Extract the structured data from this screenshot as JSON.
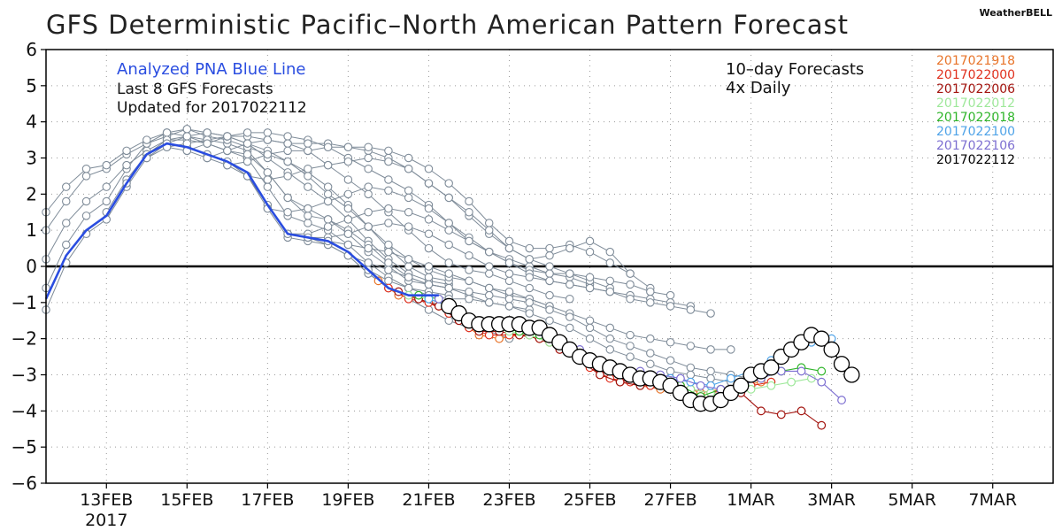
{
  "brand": "WeatherBELL",
  "chart_data": {
    "type": "line",
    "title": "GFS Deterministic Pacific–North American Pattern Forecast",
    "xlabel": "",
    "ylabel": "",
    "ylim": [
      -6,
      6
    ],
    "xlim": [
      "2017-02-11T12",
      "2017-03-08T12"
    ],
    "grid": true,
    "x_tick_labels": [
      "13FEB",
      "15FEB",
      "17FEB",
      "19FEB",
      "21FEB",
      "23FEB",
      "25FEB",
      "27FEB",
      "1MAR",
      "3MAR",
      "5MAR",
      "7MAR"
    ],
    "x_tick_dates": [
      "2017-02-13",
      "2017-02-15",
      "2017-02-17",
      "2017-02-19",
      "2017-02-21",
      "2017-02-23",
      "2017-02-25",
      "2017-02-27",
      "2017-03-01",
      "2017-03-03",
      "2017-03-05",
      "2017-03-07"
    ],
    "year_label": "2017",
    "y_ticks": [
      6,
      5,
      4,
      3,
      2,
      1,
      0,
      -1,
      -2,
      -3,
      -4,
      -5,
      -6
    ],
    "y_tick_labels": [
      "6",
      "5",
      "4",
      "3",
      "2",
      "1",
      "0",
      "−1",
      "−2",
      "−3",
      "−4",
      "−5",
      "−6"
    ],
    "annotations_left": {
      "blue_line": "Analyzed PNA Blue Line",
      "last8": "Last 8 GFS Forecasts",
      "updated": "Updated for 2017022112"
    },
    "annotations_right": {
      "forecasts": "10–day Forecasts",
      "daily": "4x Daily"
    },
    "analyzed_color": "#2a4de0",
    "old_forecast_color": "#7f8c99",
    "analyzed": {
      "name": "Analyzed PNA",
      "x": [
        "2017-02-11T12",
        "2017-02-12T00",
        "2017-02-12T12",
        "2017-02-13T00",
        "2017-02-13T12",
        "2017-02-14T00",
        "2017-02-14T12",
        "2017-02-15T00",
        "2017-02-15T12",
        "2017-02-16T00",
        "2017-02-16T12",
        "2017-02-17T00",
        "2017-02-17T12",
        "2017-02-18T00",
        "2017-02-18T12",
        "2017-02-19T00",
        "2017-02-19T12",
        "2017-02-20T00",
        "2017-02-20T12",
        "2017-02-21T00",
        "2017-02-21T06"
      ],
      "values": [
        -0.9,
        0.3,
        1.0,
        1.4,
        2.3,
        3.1,
        3.4,
        3.3,
        3.1,
        2.9,
        2.6,
        1.7,
        0.9,
        0.8,
        0.7,
        0.4,
        -0.1,
        -0.6,
        -0.8,
        -0.8,
        -0.8
      ]
    },
    "series": [
      {
        "name": "2017021918",
        "color": "#e8742a",
        "x": [
          "2017-02-19T18",
          "2017-02-20T06",
          "2017-02-20T18",
          "2017-02-21T06",
          "2017-02-21T18",
          "2017-02-22T06",
          "2017-02-22T18",
          "2017-02-23T06",
          "2017-02-23T18",
          "2017-02-24T06",
          "2017-02-24T18",
          "2017-02-25T06",
          "2017-02-25T18",
          "2017-02-26T06",
          "2017-02-26T18",
          "2017-02-27T06",
          "2017-02-27T18",
          "2017-02-28T06",
          "2017-02-28T18",
          "2017-03-01T06"
        ],
        "values": [
          -0.4,
          -0.8,
          -0.9,
          -1.1,
          -1.5,
          -1.9,
          -2.0,
          -1.9,
          -2.0,
          -2.2,
          -2.5,
          -3.0,
          -3.2,
          -3.3,
          -3.4,
          -3.3,
          -3.5,
          -3.4,
          -3.3,
          -3.2
        ]
      },
      {
        "name": "2017022000",
        "color": "#e0301e",
        "x": [
          "2017-02-20T00",
          "2017-02-20T12",
          "2017-02-21T00",
          "2017-02-21T12",
          "2017-02-22T00",
          "2017-02-22T12",
          "2017-02-23T00",
          "2017-02-23T12",
          "2017-02-24T00",
          "2017-02-24T12",
          "2017-02-25T00",
          "2017-02-25T12",
          "2017-02-26T00",
          "2017-02-26T12",
          "2017-02-27T00",
          "2017-02-27T12",
          "2017-02-28T00",
          "2017-02-28T12",
          "2017-03-01T00",
          "2017-03-01T12"
        ],
        "values": [
          -0.6,
          -0.9,
          -1.0,
          -1.3,
          -1.7,
          -1.9,
          -1.9,
          -1.9,
          -2.1,
          -2.4,
          -2.8,
          -3.1,
          -3.2,
          -3.3,
          -3.4,
          -3.4,
          -3.5,
          -3.4,
          -3.3,
          -3.2
        ]
      },
      {
        "name": "2017022006",
        "color": "#a3140f",
        "x": [
          "2017-02-20T06",
          "2017-02-20T18",
          "2017-02-21T06",
          "2017-02-21T18",
          "2017-02-22T06",
          "2017-02-22T18",
          "2017-02-23T06",
          "2017-02-23T18",
          "2017-02-24T06",
          "2017-02-24T18",
          "2017-02-25T06",
          "2017-02-25T18",
          "2017-02-26T06",
          "2017-02-26T18",
          "2017-02-27T06",
          "2017-02-27T18",
          "2017-02-28T06",
          "2017-02-28T18",
          "2017-03-01T06",
          "2017-03-01T18",
          "2017-03-02T06",
          "2017-03-02T18"
        ],
        "values": [
          -0.7,
          -0.9,
          -1.1,
          -1.5,
          -1.8,
          -1.8,
          -1.9,
          -2.0,
          -2.3,
          -2.6,
          -3.0,
          -3.2,
          -3.3,
          -3.3,
          -3.4,
          -3.6,
          -3.7,
          -3.5,
          -4.0,
          -4.1,
          -4.0,
          -4.4
        ]
      },
      {
        "name": "2017022012",
        "color": "#9ee89a",
        "x": [
          "2017-02-20T12",
          "2017-02-21T00",
          "2017-02-21T12",
          "2017-02-22T00",
          "2017-02-22T12",
          "2017-02-23T00",
          "2017-02-23T12",
          "2017-02-24T00",
          "2017-02-24T12",
          "2017-02-25T00",
          "2017-02-25T12",
          "2017-02-26T00",
          "2017-02-26T12",
          "2017-02-27T00",
          "2017-02-27T12",
          "2017-02-28T00",
          "2017-02-28T12",
          "2017-03-01T00",
          "2017-03-01T12",
          "2017-03-02T00",
          "2017-03-02T12"
        ],
        "values": [
          -0.8,
          -0.9,
          -1.1,
          -1.5,
          -1.7,
          -1.8,
          -1.9,
          -2.1,
          -2.4,
          -2.7,
          -2.9,
          -3.0,
          -3.1,
          -3.2,
          -3.4,
          -3.5,
          -3.6,
          -3.4,
          -3.3,
          -3.2,
          -3.1
        ]
      },
      {
        "name": "2017022018",
        "color": "#2fb52a",
        "x": [
          "2017-02-20T18",
          "2017-02-21T06",
          "2017-02-21T18",
          "2017-02-22T06",
          "2017-02-22T18",
          "2017-02-23T06",
          "2017-02-23T18",
          "2017-02-24T06",
          "2017-02-24T18",
          "2017-02-25T06",
          "2017-02-25T18",
          "2017-02-26T06",
          "2017-02-26T18",
          "2017-02-27T06",
          "2017-02-27T18",
          "2017-02-28T06",
          "2017-02-28T18",
          "2017-03-01T06",
          "2017-03-01T18",
          "2017-03-02T06",
          "2017-03-02T18"
        ],
        "values": [
          -0.8,
          -0.9,
          -1.3,
          -1.6,
          -1.7,
          -1.8,
          -1.9,
          -2.1,
          -2.5,
          -2.8,
          -3.0,
          -3.1,
          -3.2,
          -3.3,
          -3.6,
          -3.4,
          -3.3,
          -3.1,
          -2.9,
          -2.8,
          -2.9
        ]
      },
      {
        "name": "2017022100",
        "color": "#4fa3e8",
        "x": [
          "2017-02-21T00",
          "2017-02-21T12",
          "2017-02-22T00",
          "2017-02-22T12",
          "2017-02-23T00",
          "2017-02-23T12",
          "2017-02-24T00",
          "2017-02-24T12",
          "2017-02-25T00",
          "2017-02-25T12",
          "2017-02-26T00",
          "2017-02-26T12",
          "2017-02-27T00",
          "2017-02-27T12",
          "2017-02-28T00",
          "2017-02-28T12",
          "2017-03-01T00",
          "2017-03-01T12",
          "2017-03-02T00",
          "2017-03-02T12",
          "2017-03-03T00"
        ],
        "values": [
          -0.9,
          -1.1,
          -1.5,
          -1.7,
          -1.7,
          -1.8,
          -2.0,
          -2.3,
          -2.6,
          -2.8,
          -2.9,
          -3.0,
          -3.1,
          -3.2,
          -3.3,
          -3.1,
          -2.9,
          -2.6,
          -2.3,
          -2.1,
          -2.0
        ]
      },
      {
        "name": "2017022106",
        "color": "#7d6fd1",
        "x": [
          "2017-02-21T06",
          "2017-02-21T18",
          "2017-02-22T06",
          "2017-02-22T18",
          "2017-02-23T06",
          "2017-02-23T18",
          "2017-02-24T06",
          "2017-02-24T18",
          "2017-02-25T06",
          "2017-02-25T18",
          "2017-02-26T06",
          "2017-02-26T18",
          "2017-02-27T06",
          "2017-02-27T18",
          "2017-02-28T06",
          "2017-02-28T18",
          "2017-03-01T06",
          "2017-03-01T18",
          "2017-03-02T06",
          "2017-03-02T18",
          "2017-03-03T06"
        ],
        "values": [
          -0.9,
          -1.2,
          -1.6,
          -1.7,
          -1.7,
          -1.8,
          -2.0,
          -2.3,
          -2.6,
          -2.8,
          -2.9,
          -3.0,
          -3.1,
          -3.3,
          -3.4,
          -3.3,
          -3.1,
          -2.9,
          -2.9,
          -3.2,
          -3.7
        ]
      },
      {
        "name": "2017022112",
        "color": "#000000",
        "x": [
          "2017-02-21T12",
          "2017-02-21T18",
          "2017-02-22T00",
          "2017-02-22T06",
          "2017-02-22T12",
          "2017-02-22T18",
          "2017-02-23T00",
          "2017-02-23T06",
          "2017-02-23T12",
          "2017-02-23T18",
          "2017-02-24T00",
          "2017-02-24T06",
          "2017-02-24T12",
          "2017-02-24T18",
          "2017-02-25T00",
          "2017-02-25T06",
          "2017-02-25T12",
          "2017-02-25T18",
          "2017-02-26T00",
          "2017-02-26T06",
          "2017-02-26T12",
          "2017-02-26T18",
          "2017-02-27T00",
          "2017-02-27T06",
          "2017-02-27T12",
          "2017-02-27T18",
          "2017-02-28T00",
          "2017-02-28T06",
          "2017-02-28T12",
          "2017-02-28T18",
          "2017-03-01T00",
          "2017-03-01T06",
          "2017-03-01T12",
          "2017-03-01T18",
          "2017-03-02T00",
          "2017-03-02T06",
          "2017-03-02T12",
          "2017-03-02T18",
          "2017-03-03T00",
          "2017-03-03T06",
          "2017-03-03T12"
        ],
        "values": [
          -1.1,
          -1.3,
          -1.5,
          -1.6,
          -1.6,
          -1.6,
          -1.6,
          -1.6,
          -1.7,
          -1.7,
          -1.9,
          -2.1,
          -2.3,
          -2.5,
          -2.6,
          -2.7,
          -2.8,
          -2.9,
          -3.0,
          -3.1,
          -3.1,
          -3.2,
          -3.3,
          -3.5,
          -3.7,
          -3.8,
          -3.8,
          -3.7,
          -3.5,
          -3.3,
          -3.0,
          -2.9,
          -2.8,
          -2.5,
          -2.3,
          -2.1,
          -1.9,
          -2.0,
          -2.3,
          -2.7,
          -3.0
        ]
      }
    ],
    "old_forecasts": [
      {
        "start": "2017-02-11T12",
        "values": [
          -1.2,
          0.1,
          0.9,
          1.3,
          2.2,
          3.0,
          3.3,
          3.2,
          3.0,
          2.8,
          2.5,
          1.6,
          0.8,
          0.7,
          0.6,
          0.3,
          -0.2,
          -0.6,
          -0.9,
          -1.0,
          -1.1
        ]
      },
      {
        "start": "2017-02-11T12",
        "values": [
          -0.6,
          0.6,
          1.4,
          1.8,
          2.7,
          3.4,
          3.7,
          3.6,
          3.4,
          3.2,
          3.0,
          2.2,
          1.4,
          1.2,
          1.0,
          0.6,
          0.1,
          -0.3,
          -0.6,
          -0.7,
          -0.8
        ]
      },
      {
        "start": "2017-02-11T12",
        "values": [
          0.2,
          1.2,
          1.8,
          2.2,
          2.8,
          3.2,
          3.5,
          3.6,
          3.5,
          3.4,
          3.2,
          2.6,
          1.9,
          1.6,
          1.3,
          0.9,
          0.4,
          0.0,
          -0.4,
          -0.5,
          -0.6
        ]
      },
      {
        "start": "2017-02-11T12",
        "values": [
          1.0,
          1.8,
          2.5,
          2.7,
          3.1,
          3.4,
          3.6,
          3.8,
          3.7,
          3.6,
          3.4,
          3.0,
          2.6,
          2.2,
          1.8,
          1.3,
          0.7,
          0.2,
          -0.2,
          -0.4,
          -0.5
        ]
      },
      {
        "start": "2017-02-11T12",
        "values": [
          1.5,
          2.2,
          2.7,
          2.8,
          3.2,
          3.5,
          3.7,
          3.8,
          3.6,
          3.5,
          3.3,
          3.1,
          2.9,
          2.6,
          2.2,
          1.7,
          1.1,
          0.5,
          0.0,
          -0.3,
          -0.4
        ]
      },
      {
        "start": "2017-02-13T00",
        "values": [
          1.5,
          2.4,
          3.1,
          3.4,
          3.3,
          3.1,
          2.9,
          2.5,
          1.7,
          0.9,
          0.8,
          0.6,
          0.3,
          -0.2,
          -0.6,
          -0.9,
          -1.2,
          -1.5,
          -1.7,
          -1.8,
          -2.0
        ]
      },
      {
        "start": "2017-02-13T12",
        "values": [
          2.3,
          3.1,
          3.5,
          3.5,
          3.4,
          3.2,
          3.1,
          2.6,
          1.9,
          1.4,
          1.3,
          1.0,
          0.6,
          0.1,
          -0.3,
          -0.5,
          -0.6,
          -0.8,
          -1.0,
          -1.1,
          -1.2
        ]
      },
      {
        "start": "2017-02-14T00",
        "values": [
          3.0,
          3.4,
          3.6,
          3.7,
          3.6,
          3.4,
          3.2,
          2.9,
          2.5,
          2.0,
          1.6,
          1.1,
          0.6,
          0.2,
          -0.1,
          -0.3,
          -0.4,
          -0.6,
          -0.8,
          -0.9,
          -1.1
        ]
      },
      {
        "start": "2017-02-14T12",
        "values": [
          3.3,
          3.4,
          3.5,
          3.6,
          3.6,
          3.5,
          3.4,
          3.2,
          2.8,
          2.4,
          2.0,
          1.5,
          1.0,
          0.5,
          0.1,
          -0.1,
          -0.2,
          -0.4,
          -0.6,
          -0.8,
          -0.9
        ]
      },
      {
        "start": "2017-02-15T00",
        "values": [
          3.2,
          3.4,
          3.6,
          3.7,
          3.7,
          3.6,
          3.5,
          3.3,
          3.0,
          2.7,
          2.4,
          2.1,
          1.7,
          1.2,
          0.7,
          0.4,
          0.2,
          0.0,
          -0.2,
          -0.3,
          -0.5
        ]
      },
      {
        "start": "2017-02-15T12",
        "values": [
          3.0,
          3.2,
          3.4,
          3.5,
          3.4,
          3.4,
          3.4,
          3.3,
          3.2,
          3.0,
          2.7,
          2.3,
          1.9,
          1.4,
          0.9,
          0.5,
          0.2,
          0.0,
          -0.2,
          -0.4,
          -0.6
        ]
      },
      {
        "start": "2017-02-16T00",
        "values": [
          2.8,
          2.9,
          3.1,
          3.2,
          3.2,
          3.3,
          3.3,
          3.3,
          3.2,
          3.0,
          2.7,
          2.3,
          1.8,
          1.2,
          0.7,
          0.5,
          0.5,
          0.6,
          0.4,
          0.1,
          -0.2
        ]
      },
      {
        "start": "2017-02-16T12",
        "values": [
          2.5,
          2.4,
          2.5,
          2.7,
          2.8,
          2.9,
          3.0,
          2.9,
          2.7,
          2.3,
          1.9,
          1.5,
          1.0,
          0.5,
          0.2,
          0.3,
          0.5,
          0.7,
          0.4,
          -0.2,
          -0.6
        ]
      },
      {
        "start": "2017-02-17T00",
        "values": [
          1.6,
          1.5,
          1.6,
          1.8,
          2.0,
          2.2,
          2.1,
          1.9,
          1.6,
          1.2,
          0.8,
          0.4,
          0.1,
          -0.1,
          -0.2,
          -0.2,
          -0.3,
          -0.4,
          -0.5,
          -0.7,
          -0.8
        ]
      },
      {
        "start": "2017-02-17T12",
        "values": [
          0.9,
          0.9,
          1.1,
          1.3,
          1.5,
          1.6,
          1.5,
          1.3,
          1.0,
          0.7,
          0.4,
          0.1,
          -0.2,
          -0.4,
          -0.5,
          -0.6,
          -0.7,
          -0.8,
          -0.9,
          -1.0,
          -1.1
        ]
      },
      {
        "start": "2017-02-18T00",
        "values": [
          0.8,
          0.8,
          0.9,
          1.1,
          1.2,
          1.1,
          0.9,
          0.6,
          0.3,
          0.0,
          -0.2,
          -0.3,
          -0.4,
          -0.5,
          -0.6,
          -0.7,
          -0.9,
          -1.0,
          -1.1,
          -1.2,
          -1.3
        ]
      },
      {
        "start": "2017-02-18T12",
        "values": [
          0.7,
          0.6,
          0.5,
          0.4,
          0.2,
          0.0,
          -0.2,
          -0.4,
          -0.6,
          -0.7,
          -0.9,
          -1.1,
          -1.3,
          -1.5,
          -1.7,
          -1.9,
          -2.0,
          -2.1,
          -2.2,
          -2.3,
          -2.3
        ]
      },
      {
        "start": "2017-02-19T00",
        "values": [
          0.3,
          0.1,
          -0.1,
          -0.3,
          -0.5,
          -0.6,
          -0.7,
          -0.8,
          -0.9,
          -1.0,
          -1.2,
          -1.4,
          -1.7,
          -2.0,
          -2.2,
          -2.4,
          -2.6,
          -2.8,
          -2.9,
          -3.0,
          -3.1
        ]
      },
      {
        "start": "2017-02-19T12",
        "values": [
          -0.1,
          -0.4,
          -0.6,
          -0.8,
          -0.9,
          -0.9,
          -1.0,
          -1.1,
          -1.3,
          -1.5,
          -1.7,
          -2.0,
          -2.3,
          -2.5,
          -2.7,
          -2.9,
          -3.0,
          -3.1,
          -3.2,
          -3.3,
          -3.2
        ]
      }
    ]
  }
}
